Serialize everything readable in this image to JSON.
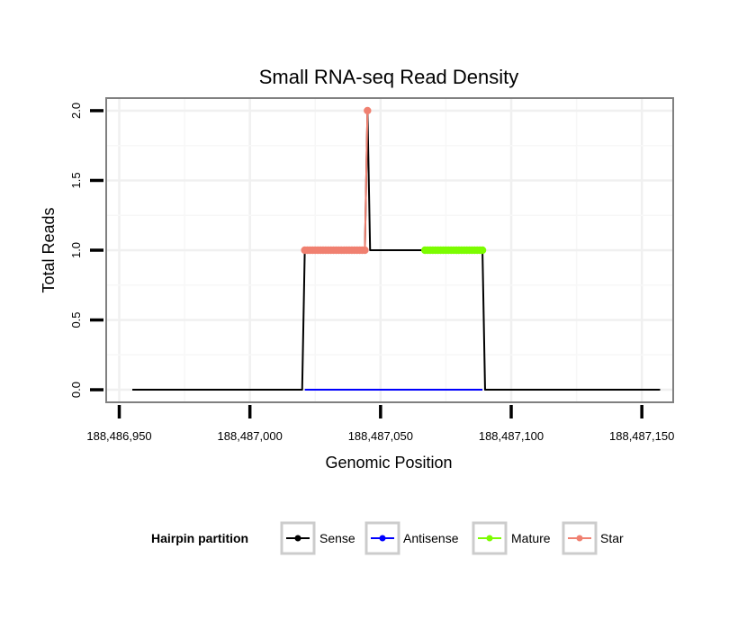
{
  "chart_data": {
    "type": "line",
    "title": "Small RNA-seq Read Density",
    "xlabel": "Genomic Position",
    "ylabel": "Total Reads",
    "xlim": [
      188486945,
      188487162
    ],
    "ylim": [
      -0.09,
      2.09
    ],
    "x_ticks": [
      188486950,
      188487000,
      188487050,
      188487100,
      188487150
    ],
    "x_tick_labels": [
      "188,486,950",
      "188,487,000",
      "188,487,050",
      "188,487,100",
      "188,487,150"
    ],
    "y_ticks": [
      0,
      0.5,
      1,
      1.5,
      2
    ],
    "y_tick_labels": [
      "0.0",
      "0.5",
      "1.0",
      "1.5",
      "2.0"
    ],
    "grid": true,
    "legend": {
      "title": "Hairpin partition",
      "position": "bottom",
      "entries": [
        "Sense",
        "Antisense",
        "Mature",
        "Star"
      ]
    },
    "series": [
      {
        "name": "Sense",
        "color": "#000000",
        "points": [
          [
            188486955,
            0
          ],
          [
            188487020,
            0
          ],
          [
            188487021,
            1
          ],
          [
            188487044,
            1
          ],
          [
            188487045,
            2
          ],
          [
            188487046,
            1
          ],
          [
            188487089,
            1
          ],
          [
            188487090,
            0
          ],
          [
            188487157,
            0
          ]
        ],
        "markers": false
      },
      {
        "name": "Antisense",
        "color": "#0000FF",
        "points": [
          [
            188487021,
            0
          ],
          [
            188487089,
            0
          ]
        ],
        "markers": false
      },
      {
        "name": "Mature",
        "color": "#7CFC00",
        "points": [
          [
            188487067,
            1
          ],
          [
            188487068,
            1
          ],
          [
            188487069,
            1
          ],
          [
            188487070,
            1
          ],
          [
            188487071,
            1
          ],
          [
            188487072,
            1
          ],
          [
            188487073,
            1
          ],
          [
            188487074,
            1
          ],
          [
            188487075,
            1
          ],
          [
            188487076,
            1
          ],
          [
            188487077,
            1
          ],
          [
            188487078,
            1
          ],
          [
            188487079,
            1
          ],
          [
            188487080,
            1
          ],
          [
            188487081,
            1
          ],
          [
            188487082,
            1
          ],
          [
            188487083,
            1
          ],
          [
            188487084,
            1
          ],
          [
            188487085,
            1
          ],
          [
            188487086,
            1
          ],
          [
            188487087,
            1
          ],
          [
            188487088,
            1
          ],
          [
            188487089,
            1
          ]
        ],
        "markers": true
      },
      {
        "name": "Star",
        "color": "#F08070",
        "points": [
          [
            188487021,
            1
          ],
          [
            188487022,
            1
          ],
          [
            188487023,
            1
          ],
          [
            188487024,
            1
          ],
          [
            188487025,
            1
          ],
          [
            188487026,
            1
          ],
          [
            188487027,
            1
          ],
          [
            188487028,
            1
          ],
          [
            188487029,
            1
          ],
          [
            188487030,
            1
          ],
          [
            188487031,
            1
          ],
          [
            188487032,
            1
          ],
          [
            188487033,
            1
          ],
          [
            188487034,
            1
          ],
          [
            188487035,
            1
          ],
          [
            188487036,
            1
          ],
          [
            188487037,
            1
          ],
          [
            188487038,
            1
          ],
          [
            188487039,
            1
          ],
          [
            188487040,
            1
          ],
          [
            188487041,
            1
          ],
          [
            188487042,
            1
          ],
          [
            188487043,
            1
          ],
          [
            188487044,
            1
          ],
          [
            188487045,
            2
          ]
        ],
        "markers": true
      }
    ]
  }
}
